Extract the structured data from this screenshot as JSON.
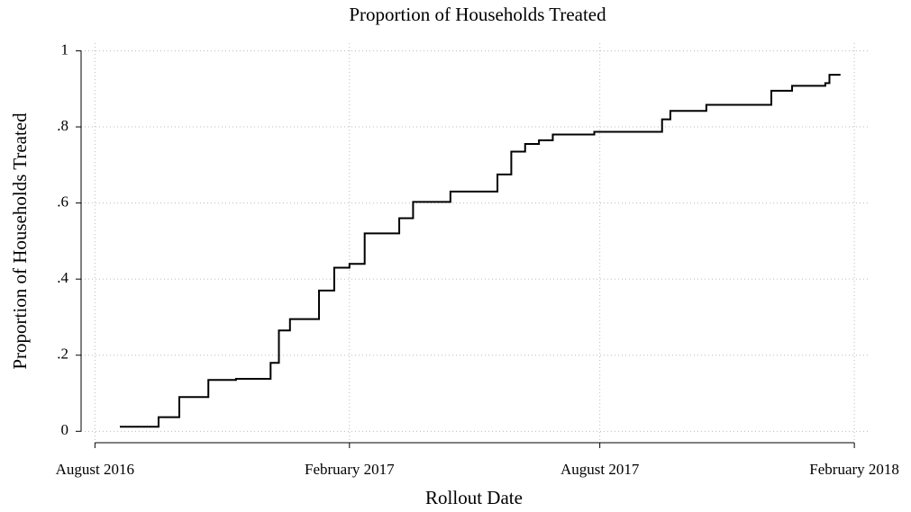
{
  "chart_data": {
    "type": "step",
    "title": "Proportion of Households Treated",
    "x_label": "Rollout Date",
    "y_label": "Proportion of Households Treated",
    "x": [
      20685,
      20713,
      20728,
      20749,
      20769,
      20794,
      20800,
      20808,
      20829,
      20840,
      20851,
      20862,
      20887,
      20897,
      20924,
      20958,
      20968,
      20978,
      20988,
      20998,
      21028,
      21077,
      21083,
      21109,
      21156,
      21171,
      21195,
      21198,
      21206
    ],
    "series": [
      {
        "name": "Proportion of Households Treated",
        "color": "#000000",
        "values": [
          0.012,
          0.037,
          0.09,
          0.135,
          0.138,
          0.18,
          0.265,
          0.295,
          0.37,
          0.43,
          0.44,
          0.52,
          0.56,
          0.603,
          0.63,
          0.675,
          0.735,
          0.755,
          0.765,
          0.78,
          0.787,
          0.82,
          0.842,
          0.858,
          0.895,
          0.908,
          0.915,
          0.937,
          0.937
        ]
      }
    ],
    "xlim": [
      20657,
      21227
    ],
    "xticks": [
      {
        "value": 20667,
        "label": "August 2016"
      },
      {
        "value": 20851,
        "label": "February 2017"
      },
      {
        "value": 21032,
        "label": "August 2017"
      },
      {
        "value": 21216,
        "label": "February 2018"
      }
    ],
    "ylim": [
      -0.03,
      1.02
    ],
    "yticks": [
      0,
      {
        "value": 0.2,
        "label": ".2"
      },
      {
        "value": 0.4,
        "label": ".4"
      },
      {
        "value": 0.6,
        "label": ".6"
      },
      {
        "value": 0.8,
        "label": ".8"
      },
      1
    ],
    "grid": true
  }
}
